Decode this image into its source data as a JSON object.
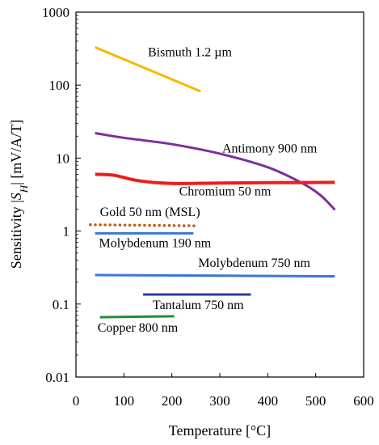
{
  "chart_data": {
    "type": "line",
    "title": "",
    "xlabel": "Temperature [°C]",
    "ylabel": "Sensitivity |S_H| [mV/A/T]",
    "xlim": [
      0,
      600
    ],
    "ylim": [
      0.01,
      1000
    ],
    "yscale": "log",
    "grid": false,
    "x_ticks": [
      0,
      100,
      200,
      300,
      400,
      500,
      600
    ],
    "x_tick_labels": [
      "0",
      "100",
      "200",
      "300",
      "400",
      "500",
      "600"
    ],
    "y_ticks": [
      0.01,
      0.1,
      1,
      10,
      100,
      1000
    ],
    "y_tick_labels": [
      "0.01",
      "0.1",
      "1",
      "10",
      "100",
      "1000"
    ],
    "series": [
      {
        "name": "Bismuth 1.2 µm",
        "color": "#f5b800",
        "style": "solid",
        "x": [
          40,
          260
        ],
        "y": [
          330,
          82
        ]
      },
      {
        "name": "Antimony 900 nm",
        "color": "#7b2f9e",
        "style": "solid",
        "x": [
          40,
          100,
          200,
          300,
          400,
          470,
          510,
          540
        ],
        "y": [
          22,
          19,
          15.5,
          11.5,
          7.5,
          4.6,
          3.1,
          1.95
        ]
      },
      {
        "name": "Chromium 50 nm",
        "color": "#ee1c1c",
        "style": "solid",
        "x": [
          40,
          80,
          130,
          200,
          300,
          400,
          540
        ],
        "y": [
          6.0,
          5.8,
          4.9,
          4.5,
          4.55,
          4.6,
          4.65
        ]
      },
      {
        "name": "Gold 50 nm (MSL)",
        "color": "#c55a11",
        "style": "dotted",
        "x": [
          30,
          250
        ],
        "y": [
          1.22,
          1.18
        ]
      },
      {
        "name": "Molybdenum 190 nm",
        "color": "#3a78d4",
        "style": "solid",
        "x": [
          40,
          245
        ],
        "y": [
          0.93,
          0.93
        ]
      },
      {
        "name": "Molybdenum 750 nm",
        "color": "#3a78d4",
        "style": "solid",
        "x": [
          40,
          540
        ],
        "y": [
          0.25,
          0.24
        ]
      },
      {
        "name": "Tantalum 750 nm",
        "color": "#2b3f94",
        "style": "solid",
        "x": [
          140,
          365
        ],
        "y": [
          0.135,
          0.135
        ]
      },
      {
        "name": "Copper 800 nm",
        "color": "#1f8f3a",
        "style": "solid",
        "x": [
          50,
          205
        ],
        "y": [
          0.066,
          0.068
        ]
      }
    ],
    "annotations": [
      {
        "text": "Bismuth 1.2 µm",
        "x": 150,
        "y": 250
      },
      {
        "text": "Antimony 900 nm",
        "x": 305,
        "y": 12
      },
      {
        "text": "Chromium 50 nm",
        "x": 215,
        "y": 3.1
      },
      {
        "text": "Gold 50 nm (MSL)",
        "x": 50,
        "y": 1.6
      },
      {
        "text": "Molybdenum 190 nm",
        "x": 48,
        "y": 0.6
      },
      {
        "text": "Molybdenum 750 nm",
        "x": 255,
        "y": 0.32
      },
      {
        "text": "Tantalum 750 nm",
        "x": 160,
        "y": 0.085
      },
      {
        "text": "Copper 800 nm",
        "x": 45,
        "y": 0.042
      }
    ]
  }
}
